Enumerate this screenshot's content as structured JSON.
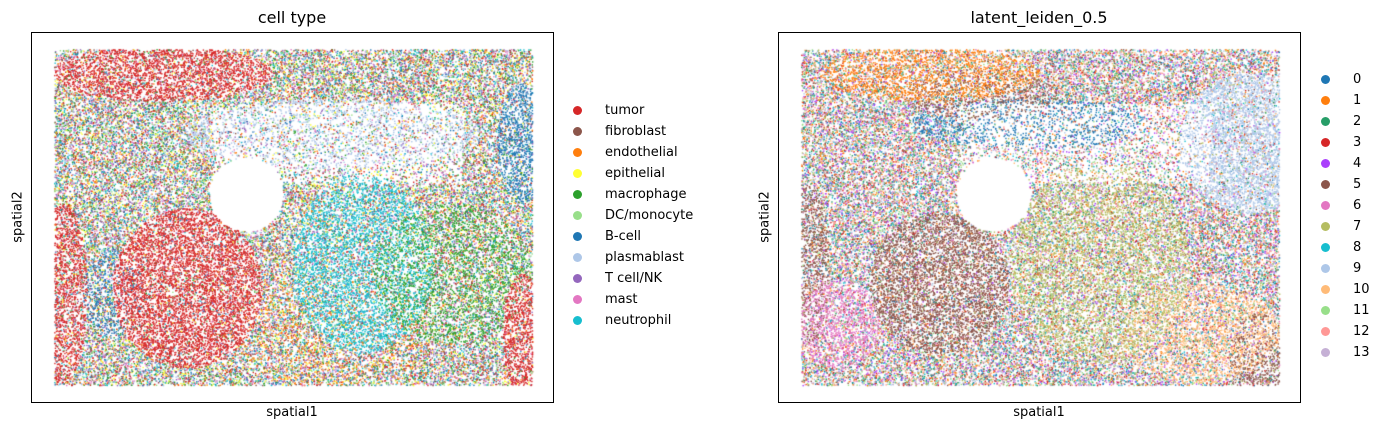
{
  "chart_data": [
    {
      "type": "scatter",
      "title": "cell type",
      "xlabel": "spatial1",
      "ylabel": "spatial2",
      "grid": false,
      "legend_position": "right",
      "categories": [
        {
          "name": "tumor",
          "color": "#d62728"
        },
        {
          "name": "fibroblast",
          "color": "#8c564b"
        },
        {
          "name": "endothelial",
          "color": "#ff7f0e"
        },
        {
          "name": "epithelial",
          "color": "#ffff33"
        },
        {
          "name": "macrophage",
          "color": "#2ca02c"
        },
        {
          "name": "DC/monocyte",
          "color": "#98df8a"
        },
        {
          "name": "B-cell",
          "color": "#1f77b4"
        },
        {
          "name": "plasmablast",
          "color": "#aec7e8"
        },
        {
          "name": "T cell/NK",
          "color": "#9467bd"
        },
        {
          "name": "mast",
          "color": "#e377c2"
        },
        {
          "name": "neutrophil",
          "color": "#17becf"
        }
      ]
    },
    {
      "type": "scatter",
      "title": "latent_leiden_0.5",
      "xlabel": "spatial1",
      "ylabel": "spatial2",
      "grid": false,
      "legend_position": "right",
      "categories": [
        {
          "name": "0",
          "color": "#1f77b4"
        },
        {
          "name": "1",
          "color": "#ff7f0e"
        },
        {
          "name": "2",
          "color": "#279e68"
        },
        {
          "name": "3",
          "color": "#d62728"
        },
        {
          "name": "4",
          "color": "#aa40fc"
        },
        {
          "name": "5",
          "color": "#8c564b"
        },
        {
          "name": "6",
          "color": "#e377c2"
        },
        {
          "name": "7",
          "color": "#b5bd61"
        },
        {
          "name": "8",
          "color": "#17becf"
        },
        {
          "name": "9",
          "color": "#aec7e8"
        },
        {
          "name": "10",
          "color": "#ffbb78"
        },
        {
          "name": "11",
          "color": "#98df8a"
        },
        {
          "name": "12",
          "color": "#ff9896"
        },
        {
          "name": "13",
          "color": "#c5b0d5"
        }
      ]
    }
  ]
}
